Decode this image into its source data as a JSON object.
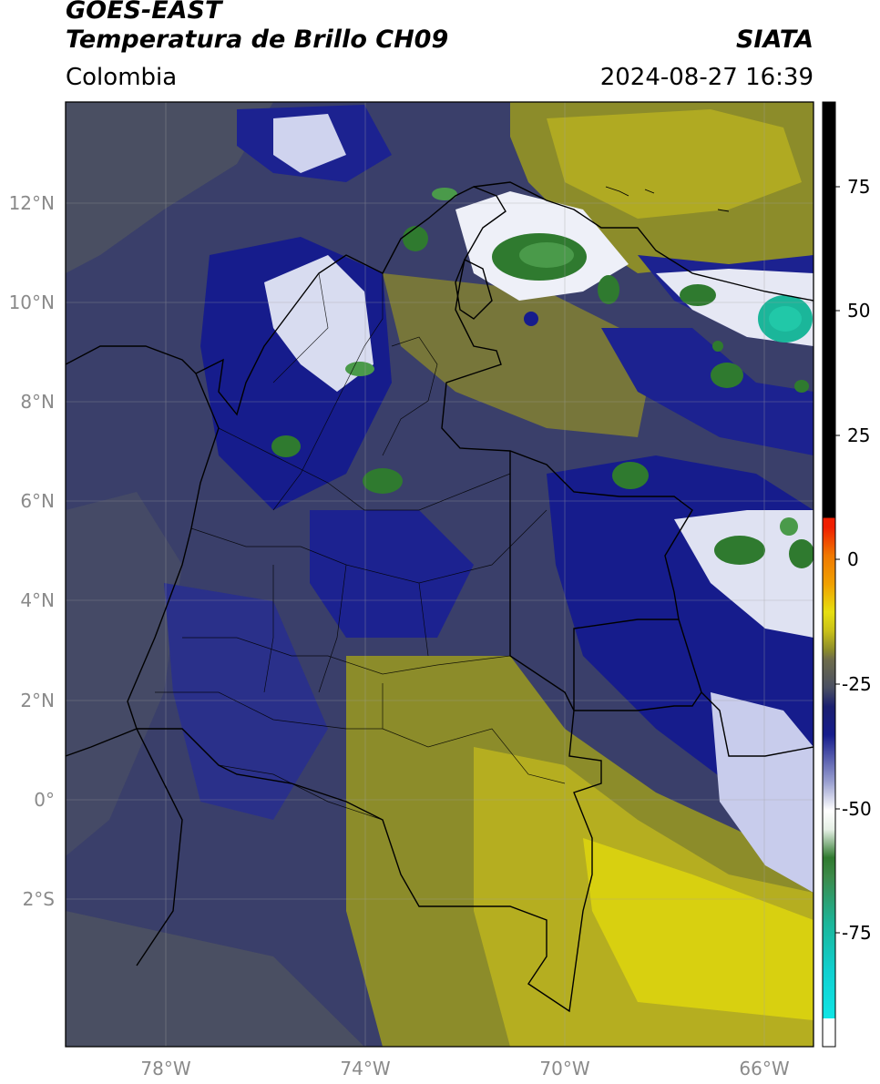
{
  "header": {
    "satellite": "GOES-EAST",
    "product": "Temperatura de Brillo CH09",
    "brand": "SIATA",
    "region": "Colombia",
    "datetime": "2024-08-27 16:39"
  },
  "map": {
    "lat_labels": [
      "12°N",
      "10°N",
      "8°N",
      "6°N",
      "4°N",
      "2°N",
      "0°",
      "2°S"
    ],
    "lon_labels": [
      "78°W",
      "74°W",
      "70°W",
      "66°W"
    ]
  },
  "colorbar": {
    "tick_labels": [
      "75",
      "50",
      "25",
      "0",
      "-25",
      "-50",
      "-75"
    ],
    "colors": {
      "black": "#000000",
      "red": "#f01e00",
      "orange": "#f07800",
      "yellow": "#e6df10",
      "olive": "#8c8c2a",
      "gray": "#4a4f62",
      "navy": "#161c8c",
      "white": "#ffffff",
      "green": "#2f7a2f",
      "teal": "#1bb69a",
      "cyan": "#10e5e5"
    }
  }
}
